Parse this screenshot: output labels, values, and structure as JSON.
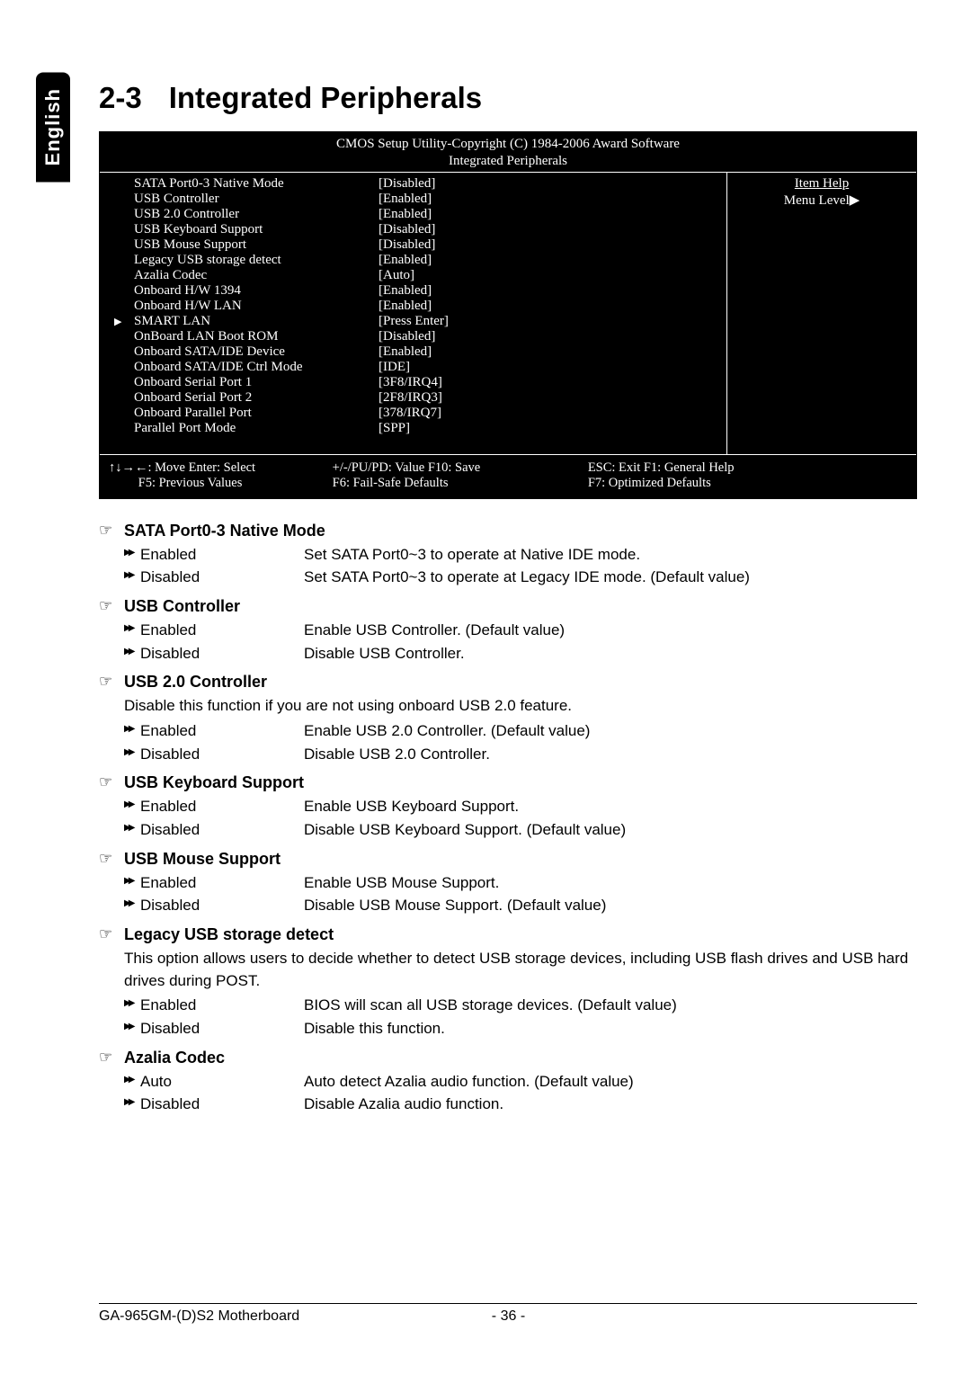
{
  "side_tab": "English",
  "heading": {
    "num": "2-3",
    "title": "Integrated Peripherals"
  },
  "bios": {
    "header_line1": "CMOS Setup Utility-Copyright (C) 1984-2006 Award Software",
    "header_line2": "Integrated Peripherals",
    "right": {
      "item_help": "Item Help",
      "menu_level": "Menu Level▶"
    },
    "rows": [
      {
        "k": "SATA Port0-3 Native Mode",
        "v": "[Disabled]",
        "ptr": false
      },
      {
        "k": "USB Controller",
        "v": "[Enabled]",
        "ptr": false
      },
      {
        "k": "USB 2.0 Controller",
        "v": "[Enabled]",
        "ptr": false
      },
      {
        "k": "USB Keyboard Support",
        "v": "[Disabled]",
        "ptr": false
      },
      {
        "k": "USB Mouse Support",
        "v": "[Disabled]",
        "ptr": false
      },
      {
        "k": "Legacy USB storage detect",
        "v": "[Enabled]",
        "ptr": false
      },
      {
        "k": "Azalia Codec",
        "v": "[Auto]",
        "ptr": false
      },
      {
        "k": "Onboard H/W 1394",
        "v": "[Enabled]",
        "ptr": false
      },
      {
        "k": "Onboard H/W LAN",
        "v": "[Enabled]",
        "ptr": false
      },
      {
        "k": "SMART LAN",
        "v": "[Press Enter]",
        "ptr": true
      },
      {
        "k": "OnBoard LAN Boot ROM",
        "v": "[Disabled]",
        "ptr": false
      },
      {
        "k": "Onboard SATA/IDE Device",
        "v": "[Enabled]",
        "ptr": false
      },
      {
        "k": "Onboard SATA/IDE Ctrl Mode",
        "v": "[IDE]",
        "ptr": false
      },
      {
        "k": "Onboard Serial Port 1",
        "v": "[3F8/IRQ4]",
        "ptr": false
      },
      {
        "k": "Onboard Serial Port 2",
        "v": "[2F8/IRQ3]",
        "ptr": false
      },
      {
        "k": "Onboard Parallel Port",
        "v": "[378/IRQ7]",
        "ptr": false
      },
      {
        "k": "Parallel Port Mode",
        "v": "[SPP]",
        "ptr": false
      }
    ],
    "footer": {
      "l1a": "↑↓→←: Move    Enter: Select",
      "l1b": "+/-/PU/PD: Value       F10: Save",
      "l1c": "ESC: Exit        F1: General Help",
      "l2a": "         F5: Previous Values",
      "l2b": "F6: Fail-Safe Defaults",
      "l2c": "F7: Optimized Defaults"
    }
  },
  "sections": [
    {
      "title": "SATA Port0-3 Native Mode",
      "desc": "",
      "opts": [
        {
          "label": "Enabled",
          "desc": "Set SATA Port0~3 to operate at Native IDE mode."
        },
        {
          "label": "Disabled",
          "desc": "Set SATA Port0~3 to operate at Legacy IDE mode. (Default value)"
        }
      ]
    },
    {
      "title": "USB Controller",
      "desc": "",
      "opts": [
        {
          "label": "Enabled",
          "desc": "Enable USB Controller. (Default value)"
        },
        {
          "label": "Disabled",
          "desc": "Disable USB Controller."
        }
      ]
    },
    {
      "title": "USB 2.0 Controller",
      "desc": "Disable this function if you are not using onboard USB 2.0 feature.",
      "opts": [
        {
          "label": "Enabled",
          "desc": "Enable USB 2.0 Controller. (Default value)"
        },
        {
          "label": "Disabled",
          "desc": "Disable USB 2.0 Controller."
        }
      ]
    },
    {
      "title": "USB Keyboard Support",
      "desc": "",
      "opts": [
        {
          "label": "Enabled",
          "desc": "Enable USB Keyboard Support."
        },
        {
          "label": "Disabled",
          "desc": "Disable USB Keyboard Support. (Default value)"
        }
      ]
    },
    {
      "title": "USB Mouse Support",
      "desc": "",
      "opts": [
        {
          "label": "Enabled",
          "desc": "Enable USB Mouse Support."
        },
        {
          "label": "Disabled",
          "desc": "Disable USB Mouse Support. (Default value)"
        }
      ]
    },
    {
      "title": "Legacy USB storage detect",
      "desc": "This option allows users to decide whether to detect USB storage devices, including USB flash drives and USB hard drives during POST.",
      "opts": [
        {
          "label": "Enabled",
          "desc": "BIOS will scan all USB storage devices. (Default value)"
        },
        {
          "label": "Disabled",
          "desc": "Disable this function."
        }
      ]
    },
    {
      "title": "Azalia Codec",
      "desc": "",
      "opts": [
        {
          "label": "Auto",
          "desc": "Auto detect Azalia audio function. (Default value)"
        },
        {
          "label": "Disabled",
          "desc": "Disable Azalia audio function."
        }
      ]
    }
  ],
  "footer": {
    "left": "GA-965GM-(D)S2 Motherboard",
    "center": "- 36 -"
  }
}
